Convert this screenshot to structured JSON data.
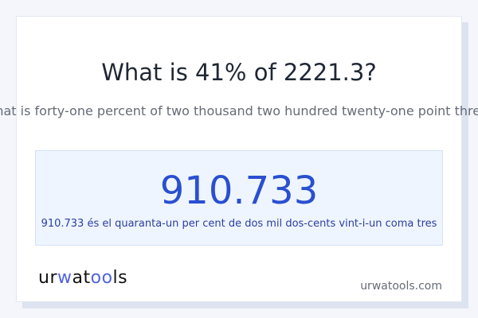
{
  "header": {
    "title": "What is 41% of 2221.3?",
    "subtitle": "What is forty-one percent of two thousand two hundred twenty-one point three?"
  },
  "result": {
    "value": "910.733",
    "caption": "910.733 és el quaranta-un per cent de dos mil dos-cents vint-i-un coma tres"
  },
  "footer": {
    "logo_text": "urwatools",
    "logo_a": "ur",
    "logo_b": "w",
    "logo_c": "at",
    "logo_d": "oo",
    "logo_e": "ls",
    "site": "urwatools.com"
  },
  "colors": {
    "accent": "#2a4fd0",
    "logo_accent": "#4f64e0",
    "result_bg": "#eef5ff"
  }
}
